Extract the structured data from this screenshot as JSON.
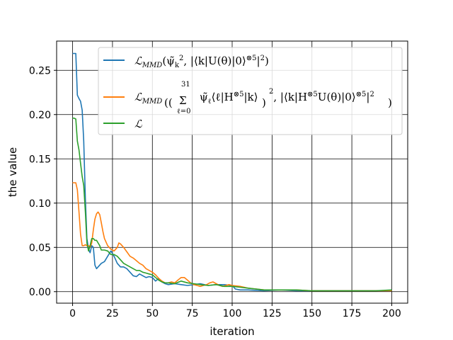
{
  "chart_data": {
    "type": "line",
    "title": "",
    "xlabel": "iteration",
    "ylabel": "the value",
    "xlim": [
      -10,
      210
    ],
    "ylim": [
      -0.013,
      0.283
    ],
    "xticks": [
      0,
      25,
      50,
      75,
      100,
      125,
      150,
      175,
      200
    ],
    "yticks": [
      0.0,
      0.05,
      0.1,
      0.15,
      0.2,
      0.25
    ],
    "xtick_labels": [
      "0",
      "25",
      "50",
      "75",
      "100",
      "125",
      "150",
      "175",
      "200"
    ],
    "ytick_labels": [
      "0.00",
      "0.05",
      "0.10",
      "0.15",
      "0.20",
      "0.25"
    ],
    "grid": true,
    "legend_position": "top-right",
    "legend": [
      "ℒ_MMD(ψ̃_k², |⟨k|U(θ)|0⟩^⊗5|²)",
      "ℒ_MMD((Σ_{ℓ=0}^{31} ψ̃_ℓ⟨ℓ|H^⊗5|k⟩)², |⟨k|H^⊗5U(θ)|0⟩^⊗5|²)",
      "ℒ"
    ],
    "series": [
      {
        "name": "ℒ_MMD(ψ̃_k², |⟨k|U(θ)|0⟩^⊗5|²)",
        "color": "#1f77b4",
        "x": [
          0,
          1,
          2,
          3,
          4,
          5,
          6,
          7,
          8,
          9,
          10,
          11,
          12,
          13,
          14,
          15,
          16,
          18,
          20,
          22,
          24,
          26,
          28,
          30,
          32,
          34,
          36,
          38,
          40,
          42,
          44,
          46,
          48,
          50,
          52,
          54,
          56,
          58,
          60,
          64,
          68,
          72,
          76,
          80,
          85,
          90,
          95,
          100,
          102,
          105,
          110,
          120,
          130,
          140,
          150,
          160,
          170,
          180,
          190,
          200
        ],
        "y": [
          0.269,
          0.269,
          0.269,
          0.222,
          0.218,
          0.215,
          0.205,
          0.17,
          0.105,
          0.06,
          0.048,
          0.044,
          0.052,
          0.05,
          0.03,
          0.026,
          0.028,
          0.032,
          0.034,
          0.04,
          0.046,
          0.04,
          0.032,
          0.028,
          0.028,
          0.026,
          0.022,
          0.018,
          0.017,
          0.02,
          0.018,
          0.016,
          0.017,
          0.016,
          0.012,
          0.015,
          0.011,
          0.009,
          0.008,
          0.009,
          0.008,
          0.007,
          0.008,
          0.009,
          0.007,
          0.008,
          0.008,
          0.007,
          0.003,
          0.002,
          0.002,
          0.001,
          0.002,
          0.001,
          0.001,
          0.001,
          0.001,
          0.001,
          0.001,
          0.001
        ]
      },
      {
        "name": "ℒ_MMD((Σ_{ℓ=0}^{31} ψ̃_ℓ⟨ℓ|H^⊗5|k⟩)², |⟨k|H^⊗5U(θ)|0⟩^⊗5|²)",
        "color": "#ff7f0e",
        "x": [
          0,
          1,
          2,
          3,
          4,
          5,
          6,
          7,
          8,
          9,
          10,
          11,
          12,
          13,
          14,
          15,
          16,
          17,
          18,
          19,
          20,
          22,
          24,
          26,
          28,
          29,
          30,
          32,
          34,
          36,
          38,
          40,
          42,
          44,
          46,
          48,
          50,
          52,
          54,
          56,
          58,
          60,
          62,
          64,
          66,
          68,
          70,
          72,
          74,
          76,
          78,
          80,
          82,
          84,
          86,
          88,
          90,
          92,
          94,
          96,
          98,
          100,
          105,
          110,
          115,
          120,
          130,
          140,
          150,
          160,
          170,
          180,
          190,
          200
        ],
        "y": [
          0.123,
          0.123,
          0.123,
          0.115,
          0.09,
          0.065,
          0.052,
          0.052,
          0.053,
          0.052,
          0.052,
          0.05,
          0.055,
          0.07,
          0.082,
          0.088,
          0.09,
          0.087,
          0.078,
          0.068,
          0.06,
          0.052,
          0.048,
          0.046,
          0.05,
          0.055,
          0.054,
          0.05,
          0.045,
          0.04,
          0.038,
          0.035,
          0.032,
          0.03,
          0.026,
          0.024,
          0.022,
          0.019,
          0.015,
          0.012,
          0.01,
          0.01,
          0.011,
          0.01,
          0.013,
          0.016,
          0.016,
          0.013,
          0.01,
          0.008,
          0.007,
          0.006,
          0.007,
          0.008,
          0.01,
          0.011,
          0.009,
          0.007,
          0.006,
          0.007,
          0.008,
          0.007,
          0.006,
          0.004,
          0.003,
          0.002,
          0.002,
          0.002,
          0.001,
          0.001,
          0.001,
          0.001,
          0.001,
          0.001
        ]
      },
      {
        "name": "ℒ",
        "color": "#2ca02c",
        "x": [
          0,
          1,
          2,
          3,
          4,
          5,
          6,
          7,
          8,
          9,
          10,
          11,
          12,
          13,
          14,
          15,
          16,
          17,
          18,
          20,
          22,
          24,
          26,
          28,
          30,
          32,
          34,
          36,
          38,
          40,
          42,
          44,
          46,
          48,
          50,
          52,
          54,
          56,
          58,
          60,
          64,
          68,
          72,
          76,
          80,
          85,
          90,
          95,
          100,
          105,
          110,
          115,
          120,
          130,
          140,
          150,
          160,
          170,
          180,
          190,
          200
        ],
        "y": [
          0.196,
          0.196,
          0.195,
          0.17,
          0.16,
          0.145,
          0.13,
          0.12,
          0.09,
          0.055,
          0.046,
          0.052,
          0.06,
          0.06,
          0.058,
          0.058,
          0.055,
          0.052,
          0.047,
          0.047,
          0.046,
          0.042,
          0.042,
          0.04,
          0.036,
          0.032,
          0.03,
          0.028,
          0.026,
          0.024,
          0.024,
          0.022,
          0.021,
          0.02,
          0.019,
          0.016,
          0.013,
          0.011,
          0.01,
          0.01,
          0.009,
          0.012,
          0.01,
          0.009,
          0.008,
          0.007,
          0.008,
          0.006,
          0.006,
          0.005,
          0.004,
          0.003,
          0.002,
          0.002,
          0.002,
          0.001,
          0.001,
          0.001,
          0.001,
          0.001,
          0.002
        ]
      }
    ]
  }
}
